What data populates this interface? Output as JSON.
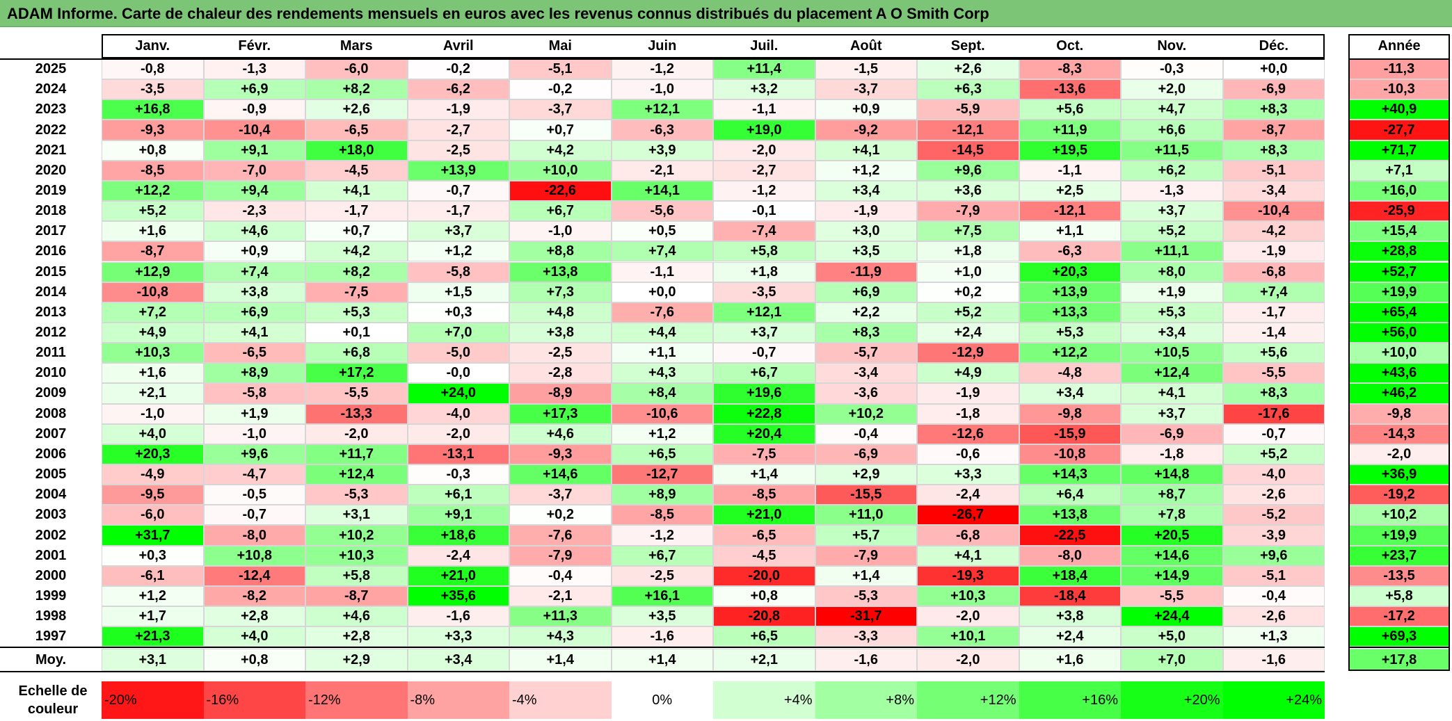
{
  "title": "ADAM Informe. Carte de chaleur des rendements mensuels en euros avec les revenus connus distribués du placement A O Smith Corp",
  "chart_data": {
    "type": "heatmap",
    "columns": [
      "Janv.",
      "Févr.",
      "Mars",
      "Avril",
      "Mai",
      "Juin",
      "Juil.",
      "Août",
      "Sept.",
      "Oct.",
      "Nov.",
      "Déc."
    ],
    "year_header": "Année",
    "rows": [
      {
        "year": "2025",
        "values": [
          -0.8,
          -1.3,
          -6.0,
          -0.2,
          -5.1,
          -1.2,
          11.4,
          -1.5,
          2.6,
          -8.3,
          -0.3,
          0.0
        ],
        "annual": -11.3
      },
      {
        "year": "2024",
        "values": [
          -3.5,
          6.9,
          8.2,
          -6.2,
          -0.2,
          -1.0,
          3.2,
          -3.7,
          6.3,
          -13.6,
          2.0,
          -6.9
        ],
        "annual": -10.3
      },
      {
        "year": "2023",
        "values": [
          16.8,
          -0.9,
          2.6,
          -1.9,
          -3.7,
          12.1,
          -1.1,
          0.9,
          -5.9,
          5.6,
          4.7,
          8.3
        ],
        "annual": 40.9
      },
      {
        "year": "2022",
        "values": [
          -9.3,
          -10.4,
          -6.5,
          -2.7,
          0.7,
          -6.3,
          19.0,
          -9.2,
          -12.1,
          11.9,
          6.6,
          -8.7
        ],
        "annual": -27.7
      },
      {
        "year": "2021",
        "values": [
          0.8,
          9.1,
          18.0,
          -2.5,
          4.2,
          3.9,
          -2.0,
          4.1,
          -14.5,
          19.5,
          11.5,
          8.3
        ],
        "annual": 71.7
      },
      {
        "year": "2020",
        "values": [
          -8.5,
          -7.0,
          -4.5,
          13.9,
          10.0,
          -2.1,
          -2.7,
          1.2,
          9.6,
          -1.1,
          6.2,
          -5.1
        ],
        "annual": 7.1
      },
      {
        "year": "2019",
        "values": [
          12.2,
          9.4,
          4.1,
          -0.7,
          -22.6,
          14.1,
          -1.2,
          3.4,
          3.6,
          2.5,
          -1.3,
          -3.4
        ],
        "annual": 16.0
      },
      {
        "year": "2018",
        "values": [
          5.2,
          -2.3,
          -1.7,
          -1.7,
          6.7,
          -5.6,
          -0.1,
          -1.9,
          -7.9,
          -12.1,
          3.7,
          -10.4
        ],
        "annual": -25.9
      },
      {
        "year": "2017",
        "values": [
          1.6,
          4.6,
          0.7,
          3.7,
          -1.0,
          0.5,
          -7.4,
          3.0,
          7.5,
          1.1,
          5.2,
          -4.2
        ],
        "annual": 15.4
      },
      {
        "year": "2016",
        "values": [
          -8.7,
          0.9,
          4.2,
          1.2,
          8.8,
          7.4,
          5.8,
          3.5,
          1.8,
          -6.3,
          11.1,
          -1.9
        ],
        "annual": 28.8
      },
      {
        "year": "2015",
        "values": [
          12.9,
          7.4,
          8.2,
          -5.8,
          13.8,
          -1.1,
          1.8,
          -11.9,
          1.0,
          20.3,
          8.0,
          -6.8
        ],
        "annual": 52.7
      },
      {
        "year": "2014",
        "values": [
          -10.8,
          3.8,
          -7.5,
          1.5,
          7.3,
          0.0,
          -3.5,
          6.9,
          0.2,
          13.9,
          1.9,
          7.4
        ],
        "annual": 19.9
      },
      {
        "year": "2013",
        "values": [
          7.2,
          6.9,
          5.3,
          0.3,
          4.8,
          -7.6,
          12.1,
          2.2,
          5.2,
          13.3,
          5.3,
          -1.7
        ],
        "annual": 65.4
      },
      {
        "year": "2012",
        "values": [
          4.9,
          4.1,
          0.1,
          7.0,
          3.8,
          4.4,
          3.7,
          8.3,
          2.4,
          5.3,
          3.4,
          -1.4
        ],
        "annual": 56.0
      },
      {
        "year": "2011",
        "values": [
          10.3,
          -6.5,
          6.8,
          -5.0,
          -2.5,
          1.1,
          -0.7,
          -5.7,
          -12.9,
          12.2,
          10.5,
          5.6
        ],
        "annual": 10.0
      },
      {
        "year": "2010",
        "values": [
          1.6,
          8.9,
          17.2,
          -0.0,
          -2.8,
          4.3,
          6.7,
          -3.4,
          4.9,
          -4.8,
          12.4,
          -5.5
        ],
        "annual": 43.6
      },
      {
        "year": "2009",
        "values": [
          2.1,
          -5.8,
          -5.5,
          24.0,
          -8.9,
          8.4,
          19.6,
          -3.6,
          -1.9,
          3.4,
          4.1,
          8.3
        ],
        "annual": 46.2
      },
      {
        "year": "2008",
        "values": [
          -1.0,
          1.9,
          -13.3,
          -4.0,
          17.3,
          -10.6,
          22.8,
          10.2,
          -1.8,
          -9.8,
          3.7,
          -17.6
        ],
        "annual": -9.8
      },
      {
        "year": "2007",
        "values": [
          4.0,
          -1.0,
          -2.0,
          -2.0,
          4.6,
          1.2,
          20.4,
          -0.4,
          -12.6,
          -15.9,
          -6.9,
          -0.7
        ],
        "annual": -14.3
      },
      {
        "year": "2006",
        "values": [
          20.3,
          9.6,
          11.7,
          -13.1,
          -9.3,
          6.5,
          -7.5,
          -6.9,
          -0.6,
          -10.8,
          -1.8,
          5.2
        ],
        "annual": -2.0
      },
      {
        "year": "2005",
        "values": [
          -4.9,
          -4.7,
          12.4,
          -0.3,
          14.6,
          -12.7,
          1.4,
          2.9,
          3.3,
          14.3,
          14.8,
          -4.0
        ],
        "annual": 36.9
      },
      {
        "year": "2004",
        "values": [
          -9.5,
          -0.5,
          -5.3,
          6.1,
          -3.7,
          8.9,
          -8.5,
          -15.5,
          -2.4,
          6.4,
          8.7,
          -2.6
        ],
        "annual": -19.2
      },
      {
        "year": "2003",
        "values": [
          -6.0,
          -0.7,
          3.1,
          9.1,
          0.2,
          -8.5,
          21.0,
          11.0,
          -26.7,
          13.8,
          7.8,
          -5.2
        ],
        "annual": 10.2
      },
      {
        "year": "2002",
        "values": [
          31.7,
          -8.0,
          10.2,
          18.6,
          -7.6,
          -1.2,
          -6.5,
          5.7,
          -6.8,
          -22.5,
          20.5,
          -3.9
        ],
        "annual": 19.9
      },
      {
        "year": "2001",
        "values": [
          0.3,
          10.8,
          10.3,
          -2.4,
          -7.9,
          6.7,
          -4.5,
          -7.9,
          4.1,
          -8.0,
          14.6,
          9.6
        ],
        "annual": 23.7
      },
      {
        "year": "2000",
        "values": [
          -6.1,
          -12.4,
          5.8,
          21.0,
          -0.4,
          -2.5,
          -20.0,
          1.4,
          -19.3,
          18.4,
          14.9,
          -5.1
        ],
        "annual": -13.5
      },
      {
        "year": "1999",
        "values": [
          1.2,
          -8.2,
          -8.7,
          35.6,
          -2.1,
          16.1,
          0.8,
          -5.3,
          10.3,
          -18.4,
          -5.5,
          -0.4
        ],
        "annual": 5.8
      },
      {
        "year": "1998",
        "values": [
          1.7,
          2.8,
          4.6,
          -1.6,
          11.3,
          3.5,
          -20.8,
          -31.7,
          -2.0,
          3.8,
          24.4,
          -2.6
        ],
        "annual": -17.2
      },
      {
        "year": "1997",
        "values": [
          21.3,
          4.0,
          2.8,
          3.3,
          4.3,
          -1.6,
          6.5,
          -3.3,
          10.1,
          2.4,
          5.0,
          1.3
        ],
        "annual": 69.3
      }
    ],
    "average": {
      "label": "Moy.",
      "values": [
        3.1,
        0.8,
        2.9,
        3.4,
        1.4,
        1.4,
        2.1,
        -1.6,
        -2.0,
        1.6,
        7.0,
        -1.6
      ],
      "annual": 17.8
    },
    "scale": {
      "label": "Echelle de couleur",
      "entries": [
        "-20%",
        "-16%",
        "-12%",
        "-8%",
        "-4%",
        "0%",
        "+4%",
        "+8%",
        "+12%",
        "+16%",
        "+20%",
        "+24%"
      ],
      "values": [
        -20,
        -16,
        -12,
        -8,
        -4,
        0,
        4,
        8,
        12,
        16,
        20,
        24
      ]
    },
    "colors": {
      "negative": "#ff0000",
      "neutral": "#ffffff",
      "positive": "#00ff00"
    }
  }
}
